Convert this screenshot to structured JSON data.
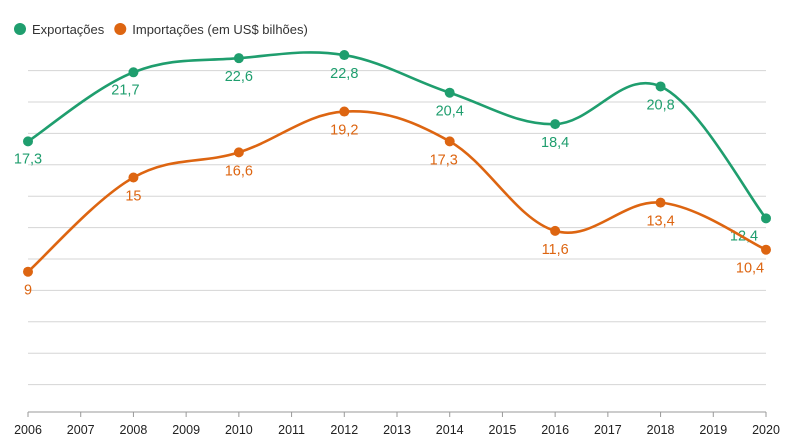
{
  "chart_data": {
    "type": "line",
    "categories": [
      "2006",
      "2007",
      "2008",
      "2009",
      "2010",
      "2011",
      "2012",
      "2013",
      "2014",
      "2015",
      "2016",
      "2017",
      "2018",
      "2019",
      "2020"
    ],
    "x": [
      2006,
      2008,
      2010,
      2012,
      2014,
      2016,
      2018,
      2020
    ],
    "series": [
      {
        "name": "Exportações",
        "color": "#1f9e6e",
        "x": [
          2006,
          2008,
          2010,
          2012,
          2014,
          2016,
          2018,
          2020
        ],
        "values": [
          17.3,
          21.7,
          22.6,
          22.8,
          20.4,
          18.4,
          20.8,
          12.4
        ],
        "labels": [
          "17,3",
          "21,7",
          "22,6",
          "22,8",
          "20,4",
          "18,4",
          "20,8",
          "12,4"
        ]
      },
      {
        "name": "Importações (em US$ bilhões)",
        "color": "#dd6511",
        "x": [
          2006,
          2008,
          2010,
          2012,
          2014,
          2016,
          2018,
          2020
        ],
        "values": [
          9,
          15,
          16.6,
          19.2,
          17.3,
          11.6,
          13.4,
          10.4
        ],
        "labels": [
          "9",
          "15",
          "16,6",
          "19,2",
          "17,3",
          "11,6",
          "13,4",
          "10,4"
        ]
      }
    ],
    "title": "",
    "xlabel": "",
    "ylabel": "",
    "xlim": [
      2006,
      2020
    ],
    "ylim": [
      0,
      25
    ],
    "grid": "horizontal",
    "legend": "top-left",
    "grid_color": "#d5d5d5",
    "axis_color": "#999999"
  }
}
